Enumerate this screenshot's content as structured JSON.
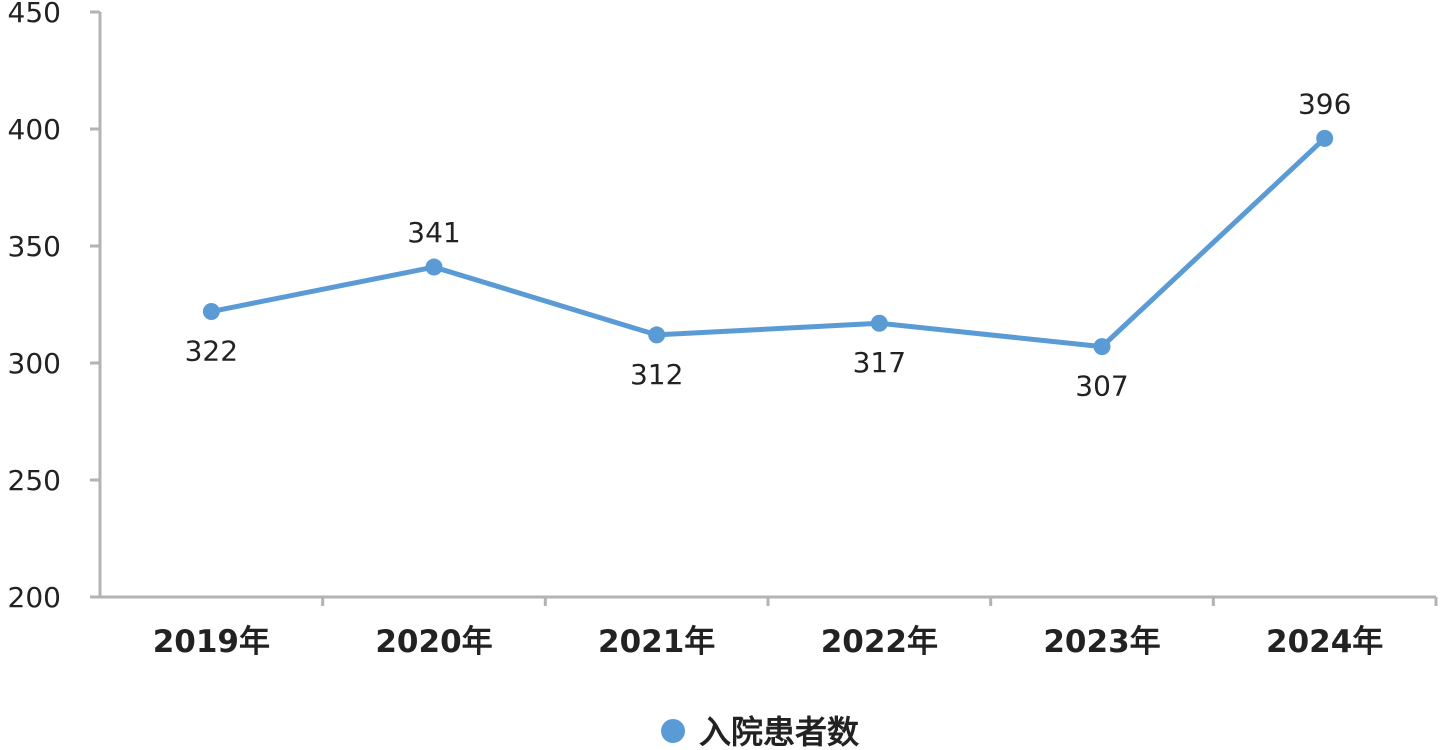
{
  "chart_data": {
    "type": "line",
    "categories": [
      "2019年",
      "2020年",
      "2021年",
      "2022年",
      "2023年",
      "2024年"
    ],
    "series": [
      {
        "name": "入院患者数",
        "values": [
          322,
          341,
          312,
          317,
          307,
          396
        ]
      }
    ],
    "ylim": [
      200,
      450
    ],
    "yticks": [
      200,
      250,
      300,
      350,
      400,
      450
    ],
    "data_labels": [
      "322",
      "341",
      "312",
      "317",
      "307",
      "396"
    ],
    "data_label_position": [
      "below",
      "above",
      "below",
      "below",
      "below",
      "above"
    ],
    "grid": false,
    "legend": "bottom-center",
    "colors": {
      "series": "#5b9bd5",
      "axis": "#b3b3b3",
      "text": "#222222"
    }
  }
}
